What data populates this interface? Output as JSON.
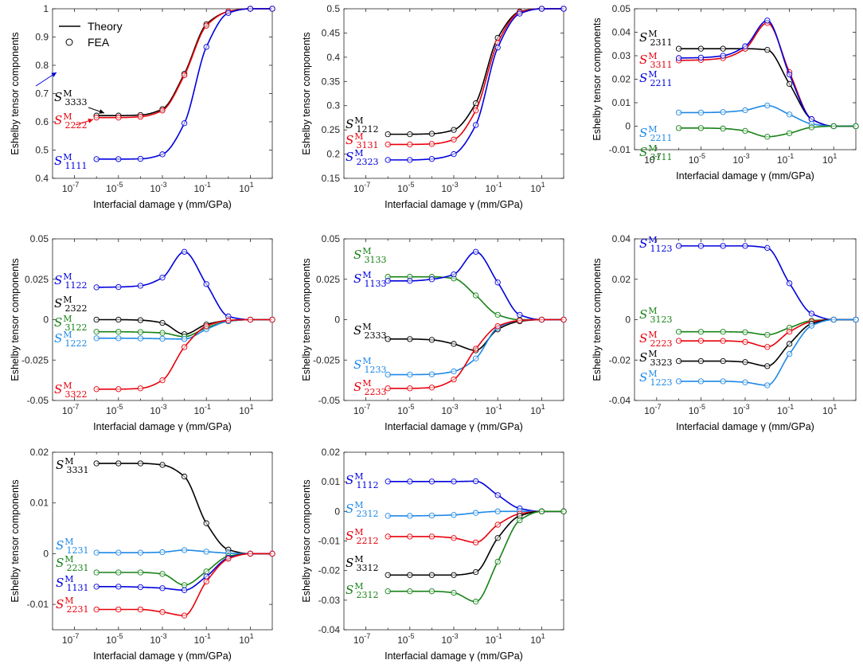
{
  "shared": {
    "xlabel": "Interfacial damage γ (mm/GPa)",
    "ylabel": "Eshelby tensor components",
    "x_ticks": [
      "10^-7",
      "10^-5",
      "10^-3",
      "10^-1",
      "10^1"
    ],
    "legend": {
      "theory": "Theory",
      "fea": "FEA"
    },
    "fea_x": [
      1e-06,
      1e-05,
      0.0001,
      0.001,
      0.01,
      0.1,
      1,
      10,
      100
    ]
  },
  "chart_data": [
    {
      "type": "line",
      "panel": "a",
      "xlabel": "Interfacial damage γ (mm/GPa)",
      "ylabel": "Eshelby tensor components",
      "xscale": "log",
      "xlim": [
        1e-08,
        100
      ],
      "ylim": [
        0.4,
        1.0
      ],
      "y_ticks": [
        "0.4",
        "0.5",
        "0.6",
        "0.7",
        "0.8",
        "0.9",
        "1"
      ],
      "y_tick_values": [
        0.4,
        0.5,
        0.6,
        0.7,
        0.8,
        0.9,
        1.0
      ],
      "series": [
        {
          "base": "S",
          "sup": "M",
          "sub": "3333",
          "color": "#000000",
          "values": [
            0.622,
            0.622,
            0.624,
            0.645,
            0.77,
            0.945,
            0.99,
            1.0,
            1.0
          ]
        },
        {
          "base": "S",
          "sup": "M",
          "sub": "2222",
          "color": "#e8000b",
          "values": [
            0.615,
            0.615,
            0.618,
            0.64,
            0.765,
            0.94,
            0.99,
            1.0,
            1.0
          ]
        },
        {
          "base": "S",
          "sup": "M",
          "sub": "1111",
          "color": "#0000dd",
          "values": [
            0.468,
            0.468,
            0.469,
            0.485,
            0.595,
            0.865,
            0.985,
            1.0,
            1.0
          ]
        }
      ]
    },
    {
      "type": "line",
      "panel": "b",
      "xlabel": "Interfacial damage γ (mm/GPa)",
      "ylabel": "Eshelby tensor components",
      "xscale": "log",
      "xlim": [
        1e-08,
        100
      ],
      "ylim": [
        0.15,
        0.5
      ],
      "y_ticks": [
        "0.15",
        "0.2",
        "0.25",
        "0.3",
        "0.35",
        "0.4",
        "0.45",
        "0.5"
      ],
      "y_tick_values": [
        0.15,
        0.2,
        0.25,
        0.3,
        0.35,
        0.4,
        0.45,
        0.5
      ],
      "series": [
        {
          "base": "S",
          "sup": "M",
          "sub": "1212",
          "color": "#000000",
          "values": [
            0.241,
            0.241,
            0.242,
            0.25,
            0.305,
            0.44,
            0.494,
            0.5,
            0.5
          ]
        },
        {
          "base": "S",
          "sup": "M",
          "sub": "3131",
          "color": "#e8000b",
          "values": [
            0.22,
            0.22,
            0.221,
            0.23,
            0.29,
            0.43,
            0.493,
            0.5,
            0.5
          ]
        },
        {
          "base": "S",
          "sup": "M",
          "sub": "2323",
          "color": "#0000dd",
          "values": [
            0.188,
            0.188,
            0.19,
            0.2,
            0.26,
            0.42,
            0.49,
            0.5,
            0.5
          ]
        }
      ]
    },
    {
      "type": "line",
      "panel": "c",
      "xlabel": "Interfacial damage γ (mm/GPa)",
      "ylabel": "Eshelby tensor components",
      "xscale": "log",
      "xlim": [
        1e-08,
        100
      ],
      "ylim": [
        -0.01,
        0.05
      ],
      "y_ticks": [
        "-0.01",
        "0",
        "0.01",
        "0.02",
        "0.03",
        "0.04",
        "0.05"
      ],
      "y_tick_values": [
        -0.01,
        0,
        0.01,
        0.02,
        0.03,
        0.04,
        0.05
      ],
      "series": [
        {
          "base": "S",
          "sup": "M",
          "sub": "2311",
          "color": "#000000",
          "values": [
            0.033,
            0.033,
            0.033,
            0.033,
            0.0325,
            0.018,
            0.003,
            0.0,
            0.0
          ]
        },
        {
          "base": "S",
          "sup": "M",
          "sub": "3311",
          "color": "#e8000b",
          "values": [
            0.028,
            0.0282,
            0.029,
            0.033,
            0.044,
            0.023,
            0.003,
            0.0,
            0.0
          ]
        },
        {
          "base": "S",
          "sup": "M",
          "sub": "2211",
          "color": "#0000dd",
          "values": [
            0.029,
            0.0292,
            0.03,
            0.034,
            0.045,
            0.022,
            0.003,
            0.0,
            0.0
          ]
        },
        {
          "base": "S",
          "sup": "M",
          "sub": "2211",
          "color": "#1e88e5",
          "values": [
            0.0058,
            0.0058,
            0.006,
            0.0068,
            0.0088,
            0.005,
            0.001,
            0.0,
            0.0
          ]
        },
        {
          "base": "S",
          "sup": "M",
          "sub": "3111",
          "color": "#168216",
          "values": [
            -0.0008,
            -0.0008,
            -0.001,
            -0.002,
            -0.0045,
            -0.003,
            -0.0005,
            0.0,
            0.0
          ]
        }
      ]
    },
    {
      "type": "line",
      "panel": "d",
      "xlabel": "Interfacial damage γ (mm/GPa)",
      "ylabel": "Eshelby tensor components",
      "xscale": "log",
      "xlim": [
        1e-08,
        100
      ],
      "ylim": [
        -0.05,
        0.05
      ],
      "y_ticks": [
        "-0.05",
        "-0.025",
        "0",
        "0.025",
        "0.05"
      ],
      "y_tick_values": [
        -0.05,
        -0.025,
        0,
        0.025,
        0.05
      ],
      "series": [
        {
          "base": "S",
          "sup": "M",
          "sub": "1122",
          "color": "#0000dd",
          "values": [
            0.02,
            0.0202,
            0.021,
            0.026,
            0.042,
            0.022,
            0.002,
            0.0,
            0.0
          ]
        },
        {
          "base": "S",
          "sup": "M",
          "sub": "2322",
          "color": "#000000",
          "values": [
            0.0,
            0.0,
            -0.0003,
            -0.002,
            -0.009,
            -0.003,
            -0.0005,
            0.0,
            0.0
          ]
        },
        {
          "base": "S",
          "sup": "M",
          "sub": "3122",
          "color": "#168216",
          "values": [
            -0.0075,
            -0.0075,
            -0.0077,
            -0.0082,
            -0.0105,
            -0.005,
            -0.001,
            0.0,
            0.0
          ]
        },
        {
          "base": "S",
          "sup": "M",
          "sub": "1222",
          "color": "#1e88e5",
          "values": [
            -0.0115,
            -0.0115,
            -0.0116,
            -0.0118,
            -0.012,
            -0.006,
            -0.001,
            0.0,
            0.0
          ]
        },
        {
          "base": "S",
          "sup": "M",
          "sub": "3322",
          "color": "#e8000b",
          "values": [
            -0.043,
            -0.043,
            -0.0425,
            -0.0375,
            -0.017,
            -0.004,
            -0.0005,
            0.0,
            0.0
          ]
        }
      ]
    },
    {
      "type": "line",
      "panel": "e",
      "xlabel": "Interfacial damage γ (mm/GPa)",
      "ylabel": "Eshelby tensor components",
      "xscale": "log",
      "xlim": [
        1e-08,
        100
      ],
      "ylim": [
        -0.05,
        0.05
      ],
      "y_ticks": [
        "-0.05",
        "-0.025",
        "0",
        "0.025",
        "0.05"
      ],
      "y_tick_values": [
        -0.05,
        -0.025,
        0,
        0.025,
        0.05
      ],
      "series": [
        {
          "base": "S",
          "sup": "M",
          "sub": "3133",
          "color": "#168216",
          "values": [
            0.0265,
            0.0265,
            0.0265,
            0.0255,
            0.015,
            0.003,
            0.0,
            0.0,
            0.0
          ]
        },
        {
          "base": "S",
          "sup": "M",
          "sub": "1133",
          "color": "#0000dd",
          "values": [
            0.024,
            0.024,
            0.025,
            0.028,
            0.042,
            0.023,
            0.003,
            0.0,
            0.0
          ]
        },
        {
          "base": "S",
          "sup": "M",
          "sub": "2333",
          "color": "#000000",
          "values": [
            -0.012,
            -0.012,
            -0.0125,
            -0.015,
            -0.019,
            -0.006,
            -0.001,
            0.0,
            0.0
          ]
        },
        {
          "base": "S",
          "sup": "M",
          "sub": "1233",
          "color": "#1e88e5",
          "values": [
            -0.034,
            -0.034,
            -0.0338,
            -0.032,
            -0.024,
            -0.005,
            -0.0005,
            0.0,
            0.0
          ]
        },
        {
          "base": "S",
          "sup": "M",
          "sub": "2233",
          "color": "#e8000b",
          "values": [
            -0.0425,
            -0.0425,
            -0.042,
            -0.037,
            -0.018,
            -0.004,
            -0.0005,
            0.0,
            0.0
          ]
        }
      ]
    },
    {
      "type": "line",
      "panel": "f",
      "xlabel": "Interfacial damage γ (mm/GPa)",
      "ylabel": "Eshelby tensor components",
      "xscale": "log",
      "xlim": [
        1e-08,
        100
      ],
      "ylim": [
        -0.04,
        0.04
      ],
      "y_ticks": [
        "-0.04",
        "-0.02",
        "0",
        "0.02",
        "0.04"
      ],
      "y_tick_values": [
        -0.04,
        -0.02,
        0,
        0.02,
        0.04
      ],
      "series": [
        {
          "base": "S",
          "sup": "M",
          "sub": "1123",
          "color": "#0000dd",
          "values": [
            0.0365,
            0.0365,
            0.0365,
            0.0365,
            0.0355,
            0.018,
            0.003,
            0.0,
            0.0
          ]
        },
        {
          "base": "S",
          "sup": "M",
          "sub": "3123",
          "color": "#168216",
          "values": [
            -0.006,
            -0.006,
            -0.006,
            -0.0062,
            -0.0075,
            -0.004,
            -0.0005,
            0.0,
            0.0
          ]
        },
        {
          "base": "S",
          "sup": "M",
          "sub": "2223",
          "color": "#e8000b",
          "values": [
            -0.0105,
            -0.0105,
            -0.0105,
            -0.011,
            -0.0135,
            -0.006,
            -0.001,
            0.0,
            0.0
          ]
        },
        {
          "base": "S",
          "sup": "M",
          "sub": "3323",
          "color": "#000000",
          "values": [
            -0.0205,
            -0.0205,
            -0.0205,
            -0.021,
            -0.023,
            -0.012,
            -0.002,
            0.0,
            0.0
          ]
        },
        {
          "base": "S",
          "sup": "M",
          "sub": "1223",
          "color": "#1e88e5",
          "values": [
            -0.0305,
            -0.0305,
            -0.0305,
            -0.031,
            -0.0325,
            -0.017,
            -0.003,
            0.0,
            0.0
          ]
        }
      ]
    },
    {
      "type": "line",
      "panel": "g",
      "xlabel": "Interfacial damage γ (mm/GPa)",
      "ylabel": "Eshelby tensor components",
      "xscale": "log",
      "xlim": [
        1e-08,
        100
      ],
      "ylim": [
        -0.015,
        0.02
      ],
      "y_ticks": [
        "-0.01",
        "0",
        "0.01",
        "0.02"
      ],
      "y_tick_values": [
        -0.01,
        0,
        0.01,
        0.02
      ],
      "series": [
        {
          "base": "S",
          "sup": "M",
          "sub": "3331",
          "color": "#000000",
          "values": [
            0.0178,
            0.0178,
            0.0178,
            0.0175,
            0.0152,
            0.006,
            0.0008,
            0.0,
            0.0
          ]
        },
        {
          "base": "S",
          "sup": "M",
          "sub": "1231",
          "color": "#1e88e5",
          "values": [
            0.0002,
            0.0002,
            0.0002,
            0.0003,
            0.0007,
            0.0004,
            0.0001,
            0.0,
            0.0
          ]
        },
        {
          "base": "S",
          "sup": "M",
          "sub": "2231",
          "color": "#168216",
          "values": [
            -0.0037,
            -0.0037,
            -0.0037,
            -0.004,
            -0.0062,
            -0.0035,
            -0.0005,
            0.0,
            0.0
          ]
        },
        {
          "base": "S",
          "sup": "M",
          "sub": "1131",
          "color": "#0000dd",
          "values": [
            -0.0065,
            -0.0065,
            -0.0066,
            -0.0068,
            -0.0072,
            -0.0045,
            -0.0008,
            0.0,
            0.0
          ]
        },
        {
          "base": "S",
          "sup": "M",
          "sub": "2231",
          "color": "#e8000b",
          "values": [
            -0.011,
            -0.011,
            -0.011,
            -0.0115,
            -0.0122,
            -0.0055,
            -0.001,
            0.0,
            0.0
          ]
        }
      ]
    },
    {
      "type": "line",
      "panel": "h",
      "xlabel": "Interfacial damage γ (mm/GPa)",
      "ylabel": "Eshelby tensor components",
      "xscale": "log",
      "xlim": [
        1e-08,
        100
      ],
      "ylim": [
        -0.04,
        0.02
      ],
      "y_ticks": [
        "-0.04",
        "-0.03",
        "-0.02",
        "-0.01",
        "0",
        "0.01",
        "0.02"
      ],
      "y_tick_values": [
        -0.04,
        -0.03,
        -0.02,
        -0.01,
        0,
        0.01,
        0.02
      ],
      "series": [
        {
          "base": "S",
          "sup": "M",
          "sub": "1112",
          "color": "#0000dd",
          "values": [
            0.0101,
            0.0101,
            0.0101,
            0.0101,
            0.0102,
            0.0055,
            0.001,
            0.0,
            0.0
          ]
        },
        {
          "base": "S",
          "sup": "M",
          "sub": "2312",
          "color": "#1e88e5",
          "values": [
            -0.0015,
            -0.0015,
            -0.0014,
            -0.0012,
            -0.0005,
            0.0,
            0.0,
            0.0,
            0.0
          ]
        },
        {
          "base": "S",
          "sup": "M",
          "sub": "2212",
          "color": "#e8000b",
          "values": [
            -0.0085,
            -0.0085,
            -0.0085,
            -0.009,
            -0.0105,
            -0.0045,
            -0.0008,
            0.0,
            0.0
          ]
        },
        {
          "base": "S",
          "sup": "M",
          "sub": "3312",
          "color": "#000000",
          "values": [
            -0.0215,
            -0.0215,
            -0.0215,
            -0.0215,
            -0.0205,
            -0.009,
            -0.0015,
            0.0,
            0.0
          ]
        },
        {
          "base": "S",
          "sup": "M",
          "sub": "2312",
          "color": "#168216",
          "values": [
            -0.027,
            -0.027,
            -0.027,
            -0.0275,
            -0.0305,
            -0.017,
            -0.003,
            0.0,
            0.0
          ]
        }
      ]
    }
  ]
}
